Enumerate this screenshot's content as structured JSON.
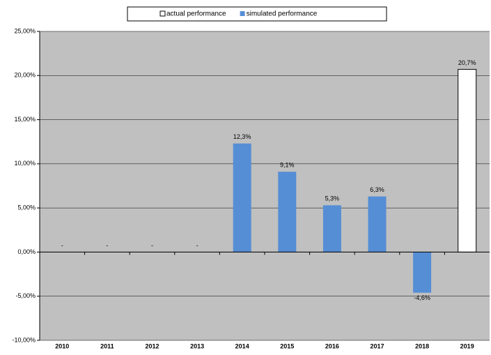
{
  "chart_data": {
    "type": "bar",
    "categories": [
      "2010",
      "2011",
      "2012",
      "2013",
      "2014",
      "2015",
      "2016",
      "2017",
      "2018",
      "2019"
    ],
    "series": [
      {
        "name": "actual performance",
        "color": "#ffffff",
        "values": [
          null,
          null,
          null,
          null,
          null,
          null,
          null,
          null,
          null,
          20.7
        ],
        "value_labels": [
          null,
          null,
          null,
          null,
          null,
          null,
          null,
          null,
          null,
          "20,7%"
        ]
      },
      {
        "name": "simulated performance",
        "color": "#558ed5",
        "values": [
          null,
          null,
          null,
          null,
          12.3,
          9.1,
          5.3,
          6.3,
          -4.6,
          null
        ],
        "value_labels": [
          "-",
          "-",
          "-",
          "-",
          "12,3%",
          "9,1%",
          "5,3%",
          "6,3%",
          "-4,6%",
          null
        ]
      }
    ],
    "ylim": [
      -10,
      25
    ],
    "yticks": [
      {
        "value": -10,
        "label": "-10,00%"
      },
      {
        "value": -5,
        "label": "-5,00%"
      },
      {
        "value": 0,
        "label": "0,00%"
      },
      {
        "value": 5,
        "label": "5,00%"
      },
      {
        "value": 10,
        "label": "10,00%"
      },
      {
        "value": 15,
        "label": "15,00%"
      },
      {
        "value": 20,
        "label": "20,00%"
      },
      {
        "value": 25,
        "label": "25,00%"
      }
    ],
    "grid": true,
    "legend": "top",
    "background": "#c0c0c0",
    "negative_label_color": "#ff0000"
  }
}
